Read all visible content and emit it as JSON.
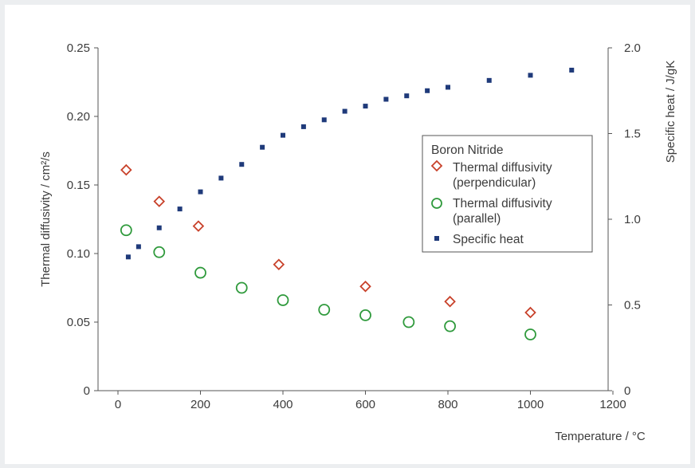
{
  "chart_data": {
    "type": "scatter",
    "xlabel": "Temperature / °C",
    "ylabel": "Thermal diffusivity / cm²/s",
    "y2label": "Specific heat / J/gK",
    "xlim": [
      0,
      1200
    ],
    "ylim": [
      0,
      0.25
    ],
    "y2lim": [
      0,
      2.0
    ],
    "xticks": [
      "0",
      "200",
      "400",
      "600",
      "800",
      "1000",
      "1200"
    ],
    "yticks": [
      "0",
      "0.05",
      "0.10",
      "0.15",
      "0.20",
      "0.25"
    ],
    "y2ticks": [
      "0",
      "0.5",
      "1.0",
      "1.5",
      "2.0"
    ],
    "grid": false,
    "legend": {
      "title": "Boron Nitride",
      "placement": "center-right"
    },
    "series": [
      {
        "name": "Thermal diffusivity (perpendicular)",
        "label_lines": [
          "Thermal diffusivity",
          "(perpendicular)"
        ],
        "marker": "diamond",
        "color": "#c8412a",
        "axis": "left",
        "x": [
          20,
          100,
          195,
          390,
          600,
          805,
          1000
        ],
        "y": [
          0.161,
          0.138,
          0.12,
          0.092,
          0.076,
          0.065,
          0.057
        ]
      },
      {
        "name": "Thermal diffusivity (parallel)",
        "label_lines": [
          "Thermal diffusivity",
          "(parallel)"
        ],
        "marker": "circle",
        "color": "#2f9a3c",
        "axis": "left",
        "x": [
          20,
          100,
          200,
          300,
          400,
          500,
          600,
          705,
          805,
          1000
        ],
        "y": [
          0.117,
          0.101,
          0.086,
          0.075,
          0.066,
          0.059,
          0.055,
          0.05,
          0.047,
          0.041
        ]
      },
      {
        "name": "Specific heat",
        "label_lines": [
          "Specific heat"
        ],
        "marker": "square",
        "color": "#1f3a7a",
        "axis": "right",
        "x": [
          25,
          50,
          100,
          150,
          200,
          250,
          300,
          350,
          400,
          450,
          500,
          550,
          600,
          650,
          700,
          750,
          800,
          900,
          1000,
          1100
        ],
        "y": [
          0.78,
          0.84,
          0.95,
          1.06,
          1.16,
          1.24,
          1.32,
          1.42,
          1.49,
          1.54,
          1.58,
          1.63,
          1.66,
          1.7,
          1.72,
          1.75,
          1.77,
          1.81,
          1.84,
          1.87
        ]
      }
    ]
  }
}
